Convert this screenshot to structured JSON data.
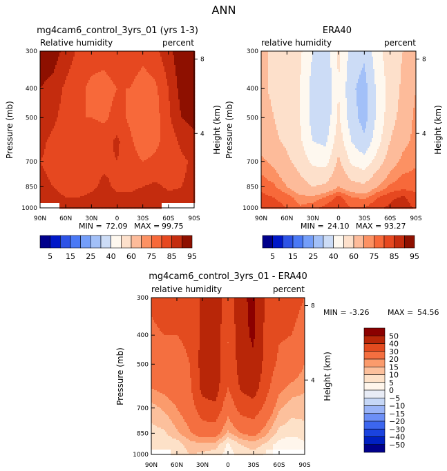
{
  "figure": {
    "title": "ANN"
  },
  "colors": {
    "rh_scale": [
      "#00008b",
      "#0018c8",
      "#2d53e6",
      "#4a79f5",
      "#749ef9",
      "#a2c0f8",
      "#ccdcf6",
      "#fef8ef",
      "#fde0cb",
      "#fdbb9a",
      "#fc9163",
      "#f7693a",
      "#e64820",
      "#c42c0e",
      "#8e1000"
    ],
    "diff_scale": [
      "#00008b",
      "#0020c2",
      "#1a43df",
      "#3c66ef",
      "#6c8ff6",
      "#9ab4f7",
      "#c6d7f6",
      "#e8ecf6",
      "#fff6ec",
      "#fde1c8",
      "#fcc09c",
      "#fb9b6c",
      "#f46f40",
      "#e34b1f",
      "#b82608",
      "#8b0000"
    ],
    "missing": "#ffffff"
  },
  "chart_data": [
    {
      "type": "heatmap",
      "title": "mg4cam6_control_3yrs_01 (yrs 1-3)",
      "subtitle_left": "Relative humidity",
      "subtitle_right": "percent",
      "xlabel": "",
      "ylabel": "Pressure (mb)",
      "ylabel_right": "Height (km)",
      "x_ticks": [
        "90N",
        "60N",
        "30N",
        "0",
        "30S",
        "60S",
        "90S"
      ],
      "y_ticks": [
        "300",
        "400",
        "500",
        "700",
        "850",
        "1000"
      ],
      "height_ticks": [
        "8",
        "4"
      ],
      "ylim": [
        1000,
        300
      ],
      "stats": {
        "min_label": "MIN =",
        "min": "72.09",
        "max_label": "MAX =",
        "max": "99.75"
      },
      "lat": [
        90,
        75,
        60,
        45,
        30,
        15,
        0,
        -15,
        -30,
        -45,
        -60,
        -75,
        -90
      ],
      "pressure": [
        300,
        400,
        500,
        600,
        700,
        850,
        925,
        1000
      ],
      "values": [
        [
          94,
          93,
          88,
          84,
          82,
          82,
          84,
          84,
          82,
          84,
          88,
          94,
          96
        ],
        [
          90,
          88,
          84,
          81,
          79,
          78,
          80,
          80,
          77,
          79,
          85,
          92,
          95
        ],
        [
          88,
          86,
          83,
          80,
          80,
          79,
          82,
          79,
          75,
          78,
          84,
          90,
          92
        ],
        [
          86,
          84,
          82,
          80,
          83,
          83,
          86,
          81,
          77,
          79,
          82,
          86,
          88
        ],
        [
          85,
          84,
          82,
          81,
          84,
          84,
          85,
          82,
          80,
          81,
          82,
          84,
          86
        ],
        [
          86,
          85,
          84,
          83,
          84,
          86,
          84,
          84,
          85,
          86,
          84,
          85,
          86
        ],
        [
          87,
          86,
          85,
          85,
          86,
          89,
          86,
          86,
          87,
          89,
          87,
          86,
          86
        ],
        [
          null,
          null,
          85,
          86,
          87,
          89,
          87,
          87,
          88,
          88,
          null,
          null,
          null
        ]
      ]
    },
    {
      "type": "heatmap",
      "title": "ERA40",
      "subtitle_left": "relative humidity",
      "subtitle_right": "percent",
      "xlabel": "",
      "ylabel": "Pressure (mb)",
      "ylabel_right": "Height (km)",
      "x_ticks": [
        "90N",
        "60N",
        "30N",
        "0",
        "30S",
        "60S",
        "90S"
      ],
      "y_ticks": [
        "300",
        "400",
        "500",
        "700",
        "850",
        "1000"
      ],
      "height_ticks": [
        "8",
        "4"
      ],
      "ylim": [
        1000,
        300
      ],
      "stats": {
        "min_label": "MIN =",
        "min": "24.10",
        "max_label": "MAX =",
        "max": "93.27"
      },
      "lat": [
        90,
        75,
        60,
        45,
        30,
        15,
        0,
        -15,
        -30,
        -45,
        -60,
        -75,
        -90
      ],
      "pressure": [
        300,
        400,
        500,
        600,
        700,
        850,
        925,
        1000
      ],
      "values": [
        [
          62,
          58,
          56,
          52,
          40,
          34,
          52,
          36,
          32,
          46,
          56,
          60,
          66
        ],
        [
          62,
          58,
          54,
          50,
          36,
          30,
          50,
          32,
          26,
          42,
          54,
          62,
          70
        ],
        [
          64,
          60,
          55,
          50,
          36,
          32,
          52,
          34,
          26,
          42,
          56,
          64,
          72
        ],
        [
          66,
          62,
          58,
          52,
          40,
          38,
          56,
          40,
          32,
          46,
          60,
          68,
          72
        ],
        [
          72,
          68,
          62,
          56,
          48,
          46,
          62,
          48,
          44,
          54,
          66,
          72,
          74
        ],
        [
          78,
          76,
          70,
          64,
          60,
          62,
          70,
          64,
          62,
          70,
          76,
          78,
          78
        ],
        [
          82,
          80,
          78,
          72,
          72,
          76,
          82,
          76,
          74,
          80,
          84,
          86,
          82
        ],
        [
          84,
          82,
          80,
          76,
          78,
          82,
          84,
          80,
          80,
          84,
          86,
          88,
          84
        ]
      ]
    },
    {
      "type": "heatmap",
      "title": "mg4cam6_control_3yrs_01 - ERA40",
      "subtitle_left": "relative humidity",
      "subtitle_right": "percent",
      "xlabel": "",
      "ylabel": "Pressure (mb)",
      "ylabel_right": "Height (km)",
      "x_ticks": [
        "90N",
        "60N",
        "30N",
        "0",
        "30S",
        "60S",
        "90S"
      ],
      "y_ticks": [
        "300",
        "400",
        "500",
        "700",
        "850",
        "1000"
      ],
      "height_ticks": [
        "8",
        "4"
      ],
      "ylim": [
        1000,
        300
      ],
      "stats": {
        "min_label": "MIN =",
        "min": "-3.26",
        "max_label": "MAX =",
        "max": "54.56"
      },
      "lat": [
        90,
        75,
        60,
        45,
        30,
        15,
        0,
        -15,
        -30,
        -45,
        -60,
        -75,
        -90
      ],
      "pressure": [
        300,
        400,
        500,
        600,
        700,
        850,
        925,
        1000
      ],
      "values": [
        [
          32,
          35,
          32,
          30,
          42,
          48,
          32,
          48,
          52,
          38,
          32,
          34,
          30
        ],
        [
          28,
          30,
          30,
          31,
          43,
          48,
          30,
          48,
          51,
          37,
          31,
          30,
          25
        ],
        [
          24,
          26,
          28,
          30,
          44,
          47,
          30,
          45,
          49,
          36,
          28,
          26,
          20
        ],
        [
          20,
          22,
          24,
          28,
          43,
          45,
          30,
          41,
          45,
          33,
          22,
          18,
          16
        ],
        [
          13,
          16,
          20,
          25,
          36,
          38,
          23,
          34,
          36,
          27,
          16,
          12,
          12
        ],
        [
          8,
          9,
          14,
          19,
          24,
          24,
          14,
          20,
          23,
          16,
          8,
          7,
          8
        ],
        [
          5,
          6,
          7,
          13,
          14,
          13,
          4,
          10,
          13,
          9,
          3,
          0,
          4
        ],
        [
          null,
          null,
          5,
          10,
          9,
          7,
          3,
          7,
          8,
          4,
          null,
          null,
          null
        ]
      ]
    }
  ],
  "colorbar_top": {
    "labels": [
      "5",
      "15",
      "25",
      "40",
      "60",
      "75",
      "85",
      "95"
    ]
  },
  "colorbar_diff": {
    "labels": [
      "50",
      "40",
      "30",
      "20",
      "15",
      "10",
      "5",
      "0",
      "−5",
      "−10",
      "−15",
      "−20",
      "−30",
      "−40",
      "−50"
    ]
  }
}
